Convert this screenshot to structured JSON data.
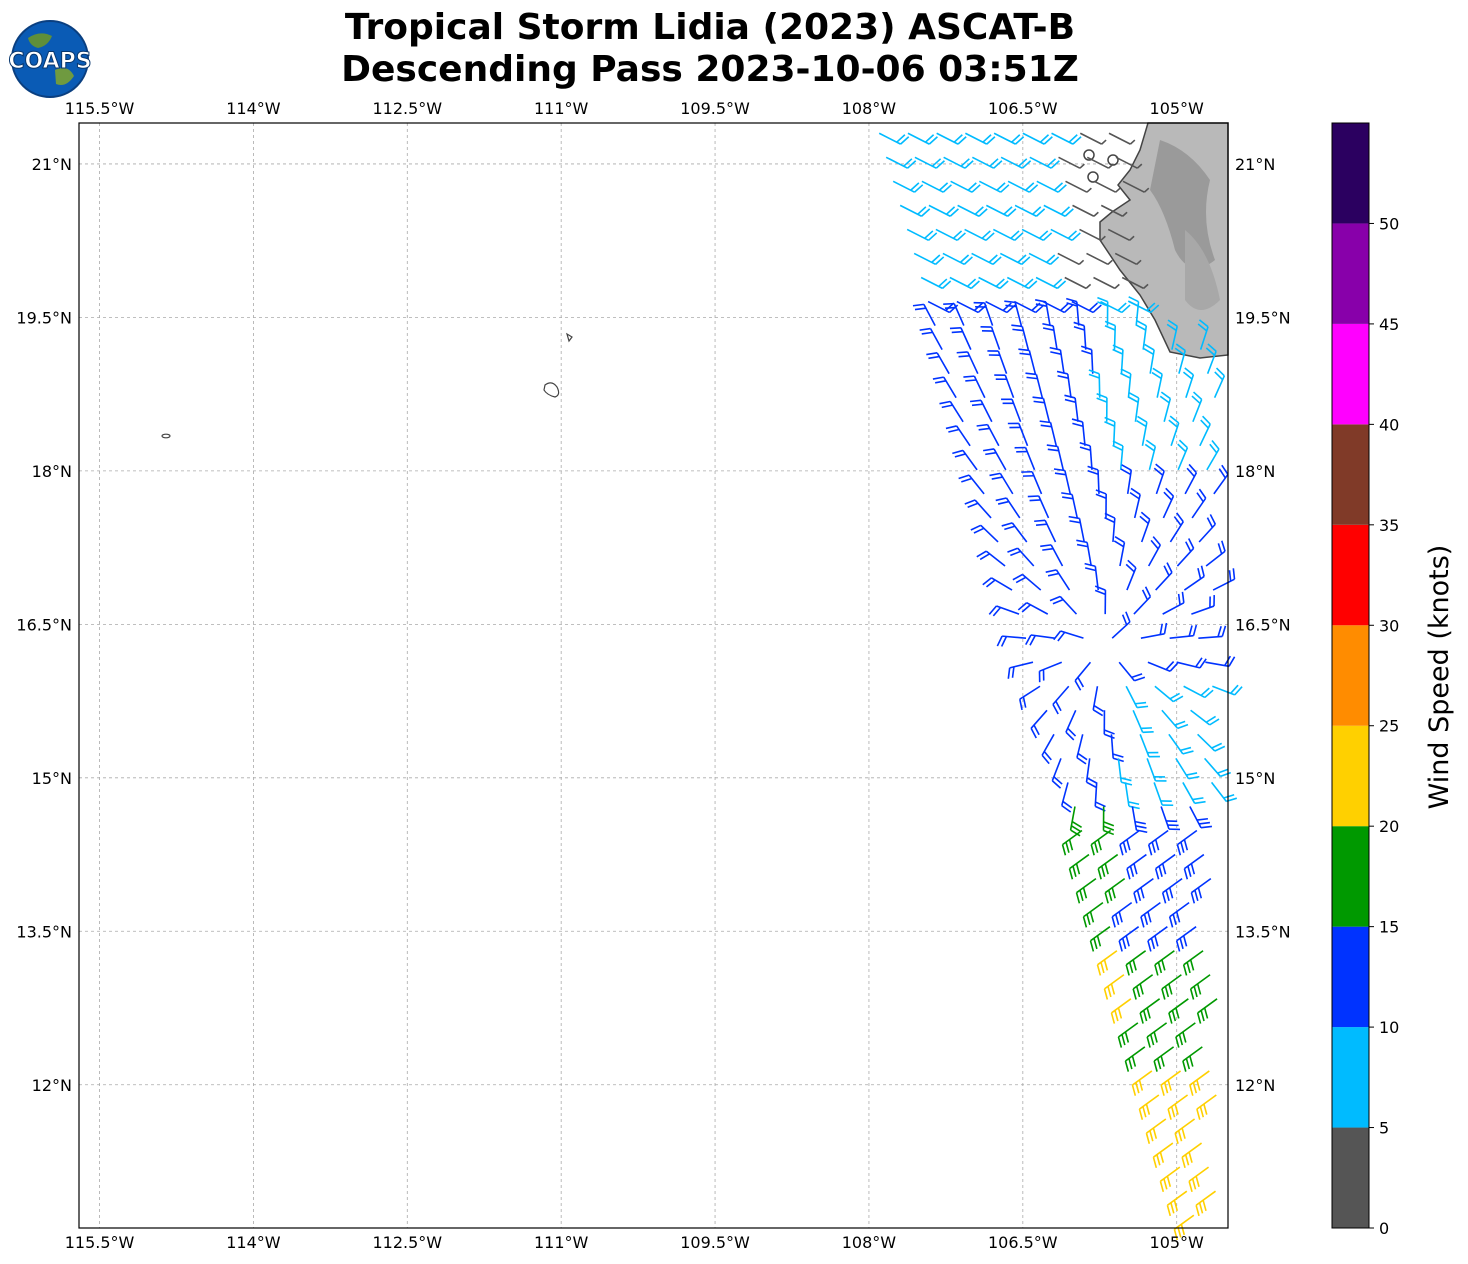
{
  "header": {
    "logo_text": "COAPS",
    "title_line1": "Tropical Storm Lidia (2023) ASCAT-B",
    "title_line2": "Descending Pass 2023-10-06 03:51Z"
  },
  "map": {
    "lon_range": [
      -115.7,
      -104.5
    ],
    "lat_range": [
      10.6,
      21.4
    ],
    "lon_ticks": [
      {
        "value": -115.5,
        "label": "115.5°W"
      },
      {
        "value": -114,
        "label": "114°W"
      },
      {
        "value": -112.5,
        "label": "112.5°W"
      },
      {
        "value": -111,
        "label": "111°W"
      },
      {
        "value": -109.5,
        "label": "109.5°W"
      },
      {
        "value": -108,
        "label": "108°W"
      },
      {
        "value": -106.5,
        "label": "106.5°W"
      },
      {
        "value": -105,
        "label": "105°W"
      }
    ],
    "lat_ticks": [
      {
        "value": 21,
        "label": "21°N"
      },
      {
        "value": 19.5,
        "label": "19.5°N"
      },
      {
        "value": 18,
        "label": "18°N"
      },
      {
        "value": 16.5,
        "label": "16.5°N"
      },
      {
        "value": 15,
        "label": "15°N"
      },
      {
        "value": 13.5,
        "label": "13.5°N"
      },
      {
        "value": 12,
        "label": "12°N"
      }
    ],
    "gridlines": true,
    "coastline_color": "#444444",
    "land_shading": "gray-topography"
  },
  "colorbar": {
    "title": "Wind Speed (knots)",
    "bins": [
      {
        "min": 0,
        "max": 5,
        "color": "#555555"
      },
      {
        "min": 5,
        "max": 10,
        "color": "#00bbff"
      },
      {
        "min": 10,
        "max": 15,
        "color": "#0033ff"
      },
      {
        "min": 15,
        "max": 20,
        "color": "#009900"
      },
      {
        "min": 20,
        "max": 25,
        "color": "#ffd000"
      },
      {
        "min": 25,
        "max": 30,
        "color": "#ff8c00"
      },
      {
        "min": 30,
        "max": 35,
        "color": "#ff0000"
      },
      {
        "min": 35,
        "max": 40,
        "color": "#803a28"
      },
      {
        "min": 40,
        "max": 45,
        "color": "#ff00ff"
      },
      {
        "min": 45,
        "max": 50,
        "color": "#8800aa"
      },
      {
        "min": 50,
        "max": 55,
        "color": "#2b0060"
      }
    ],
    "tick_labels": [
      "0",
      "5",
      "10",
      "15",
      "20",
      "25",
      "30",
      "35",
      "40",
      "45",
      "50"
    ]
  }
}
